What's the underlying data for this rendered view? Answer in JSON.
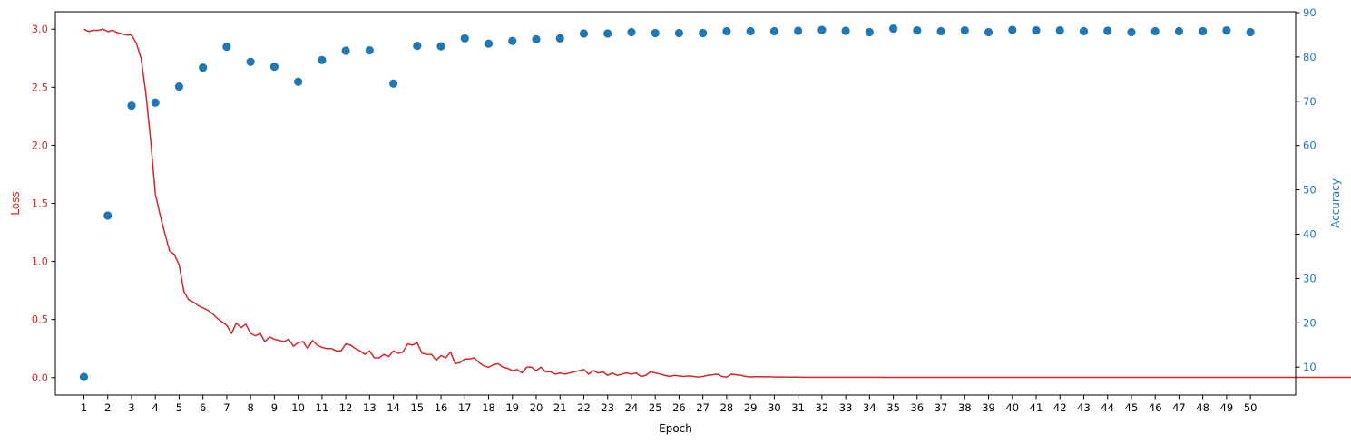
{
  "chart_data": {
    "type": "line+scatter",
    "xlabel": "Epoch",
    "ylabel_left": "Loss",
    "ylabel_right": "Accuracy",
    "colors": {
      "loss": "#d62728",
      "accuracy": "#1f77b4",
      "axis": "#000000"
    },
    "xlim": [
      -0.2,
      51.9
    ],
    "ylim_left": [
      -0.15,
      3.15
    ],
    "ylim_right": [
      3.7,
      90.2
    ],
    "x_ticks": [
      1,
      2,
      3,
      4,
      5,
      6,
      7,
      8,
      9,
      10,
      11,
      12,
      13,
      14,
      15,
      16,
      17,
      18,
      19,
      20,
      21,
      22,
      23,
      24,
      25,
      26,
      27,
      28,
      29,
      30,
      31,
      32,
      33,
      34,
      35,
      36,
      37,
      38,
      39,
      40,
      41,
      42,
      43,
      44,
      45,
      46,
      47,
      48,
      49,
      50
    ],
    "y_ticks_left": [
      "0.0",
      "0.5",
      "1.0",
      "1.5",
      "2.0",
      "2.5",
      "3.0"
    ],
    "y_ticks_right": [
      "10",
      "20",
      "30",
      "40",
      "50",
      "60",
      "70",
      "80",
      "90"
    ],
    "series": [
      {
        "name": "Loss",
        "kind": "line",
        "axis": "left",
        "x_start": 1,
        "x_step": 0.2,
        "values": [
          3.0,
          2.98,
          2.99,
          2.99,
          3.0,
          2.98,
          2.99,
          2.97,
          2.96,
          2.95,
          2.95,
          2.88,
          2.75,
          2.45,
          2.05,
          1.58,
          1.4,
          1.24,
          1.09,
          1.06,
          0.97,
          0.74,
          0.67,
          0.65,
          0.62,
          0.6,
          0.58,
          0.55,
          0.51,
          0.48,
          0.45,
          0.38,
          0.47,
          0.43,
          0.46,
          0.38,
          0.36,
          0.38,
          0.31,
          0.35,
          0.33,
          0.32,
          0.31,
          0.33,
          0.27,
          0.3,
          0.31,
          0.25,
          0.32,
          0.28,
          0.26,
          0.25,
          0.25,
          0.23,
          0.23,
          0.29,
          0.28,
          0.25,
          0.23,
          0.2,
          0.23,
          0.17,
          0.17,
          0.2,
          0.18,
          0.23,
          0.21,
          0.22,
          0.29,
          0.28,
          0.3,
          0.21,
          0.2,
          0.2,
          0.15,
          0.19,
          0.17,
          0.22,
          0.12,
          0.13,
          0.16,
          0.16,
          0.17,
          0.13,
          0.1,
          0.09,
          0.11,
          0.12,
          0.09,
          0.08,
          0.06,
          0.07,
          0.04,
          0.09,
          0.09,
          0.06,
          0.09,
          0.05,
          0.05,
          0.03,
          0.04,
          0.03,
          0.04,
          0.05,
          0.06,
          0.07,
          0.03,
          0.06,
          0.04,
          0.05,
          0.02,
          0.04,
          0.02,
          0.03,
          0.04,
          0.03,
          0.04,
          0.01,
          0.02,
          0.05,
          0.04,
          0.03,
          0.02,
          0.01,
          0.02,
          0.015,
          0.01,
          0.015,
          0.01,
          0.005,
          0.01,
          0.02,
          0.025,
          0.03,
          0.01,
          0.005,
          0.03,
          0.025,
          0.02,
          0.01,
          0.006,
          0.008,
          0.008,
          0.007,
          0.008,
          0.005,
          0.005,
          0.005,
          0.004,
          0.004,
          0.004,
          0.003,
          0.003,
          0.003,
          0.003,
          0.003,
          0.003,
          0.003,
          0.003,
          0.003,
          0.003,
          0.003,
          0.003,
          0.003,
          0.003,
          0.003,
          0.003,
          0.003,
          0.002,
          0.002,
          0.002,
          0.002,
          0.002,
          0.002,
          0.002,
          0.002,
          0.002,
          0.002,
          0.002,
          0.002,
          0.002,
          0.002,
          0.002,
          0.002,
          0.002,
          0.002,
          0.002,
          0.002,
          0.002,
          0.002,
          0.002,
          0.002,
          0.002,
          0.002,
          0.002,
          0.002,
          0.002,
          0.002,
          0.002,
          0.002,
          0.002,
          0.002,
          0.002,
          0.002,
          0.002,
          0.002,
          0.002,
          0.002,
          0.002,
          0.002,
          0.002,
          0.002,
          0.002,
          0.002,
          0.002,
          0.002,
          0.002,
          0.002,
          0.002,
          0.002,
          0.002,
          0.002,
          0.002,
          0.002,
          0.002,
          0.002,
          0.002,
          0.002,
          0.002,
          0.002,
          0.002,
          0.002,
          0.002,
          0.002,
          0.002,
          0.002,
          0.002,
          0.002,
          0.002,
          0.002,
          0.002,
          0.002,
          0.002,
          0.002,
          0.002,
          0.002,
          0.002,
          0.002,
          0.002,
          0.002,
          0.002,
          0.002,
          0.002,
          0.002,
          0.002,
          0.002,
          0.002,
          0.002,
          0.002,
          0.002,
          0.002,
          0.002,
          0.002,
          0.002,
          0.002,
          0.002,
          0.002,
          0.002,
          0.002,
          0.002,
          0.002
        ]
      },
      {
        "name": "Accuracy",
        "kind": "scatter",
        "axis": "right",
        "x": [
          1,
          2,
          3,
          4,
          5,
          6,
          7,
          8,
          9,
          10,
          11,
          12,
          13,
          14,
          15,
          16,
          17,
          18,
          19,
          20,
          21,
          22,
          23,
          24,
          25,
          26,
          27,
          28,
          29,
          30,
          31,
          32,
          33,
          34,
          35,
          36,
          37,
          38,
          39,
          40,
          41,
          42,
          43,
          44,
          45,
          46,
          47,
          48,
          49,
          50
        ],
        "values": [
          7.8,
          44.2,
          69.0,
          69.7,
          73.3,
          77.6,
          82.3,
          78.9,
          77.8,
          74.4,
          79.3,
          81.4,
          81.5,
          74.0,
          82.5,
          82.4,
          84.2,
          83.0,
          83.6,
          84.0,
          84.2,
          85.3,
          85.3,
          85.6,
          85.4,
          85.4,
          85.4,
          85.8,
          85.8,
          85.8,
          85.9,
          86.1,
          85.9,
          85.6,
          86.4,
          86.0,
          85.8,
          86.0,
          85.6,
          86.1,
          86.0,
          86.0,
          85.8,
          85.9,
          85.6,
          85.8,
          85.8,
          85.8,
          86.0,
          85.6
        ]
      }
    ]
  }
}
